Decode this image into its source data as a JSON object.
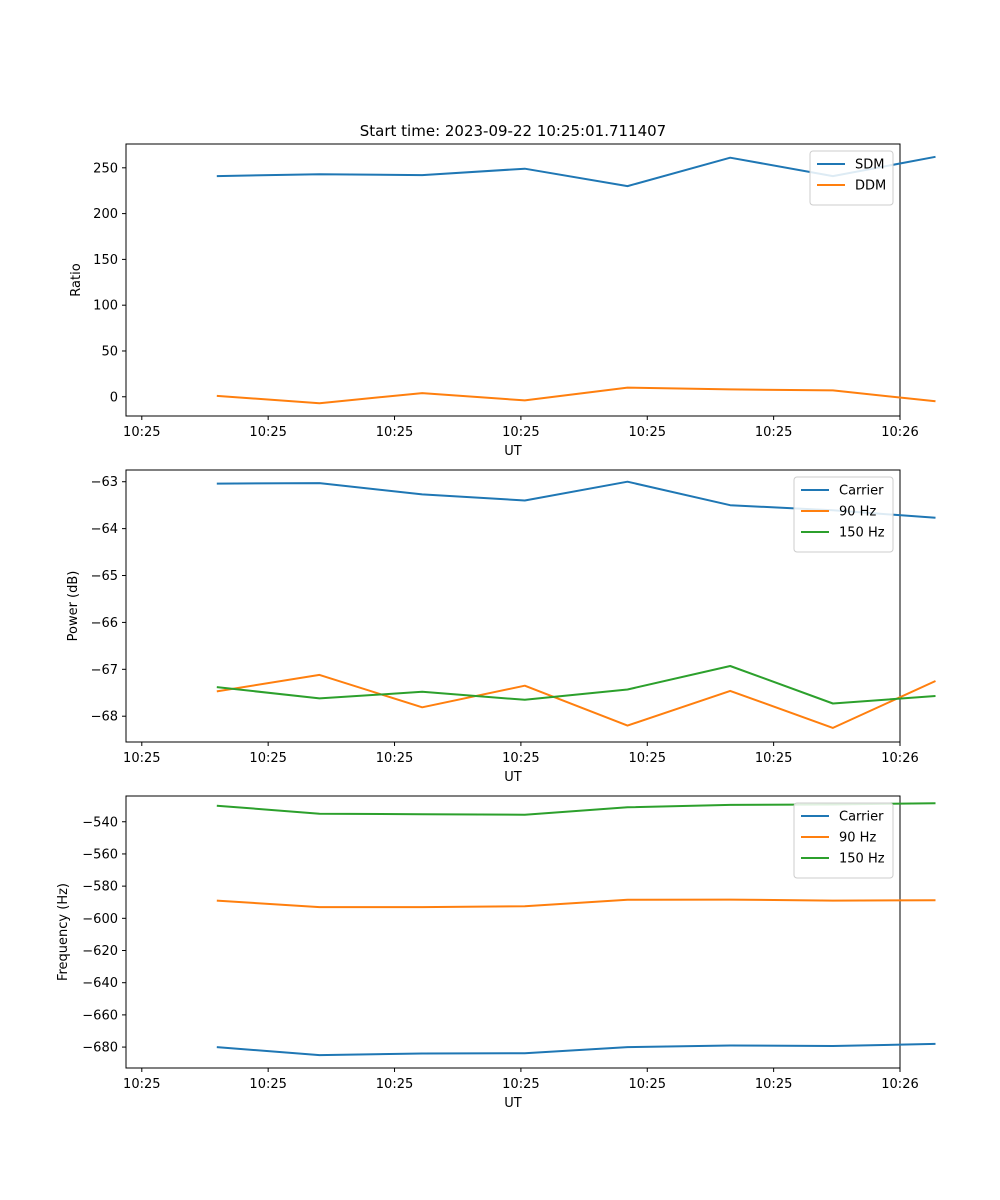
{
  "figure": {
    "title": "Start time: 2023-09-22 10:25:01.711407"
  },
  "colors": {
    "blue": "#1f77b4",
    "orange": "#ff7f0e",
    "green": "#2ca02c"
  },
  "chart_data": [
    {
      "type": "line",
      "title": "Start time: 2023-09-22 10:25:01.711407",
      "xlabel": "UT",
      "ylabel": "Ratio",
      "x_index": [
        1,
        2,
        3,
        4,
        5,
        6,
        7,
        8
      ],
      "x_tick_positions": [
        0,
        1.6,
        3.2,
        4.8,
        6.4,
        8.0,
        9.6
      ],
      "x_tick_labels": [
        "10:25",
        "10:25",
        "10:25",
        "10:25",
        "10:25",
        "10:25",
        "10:26"
      ],
      "xlim": [
        -0.2,
        9.6
      ],
      "ylim": [
        -21,
        276
      ],
      "y_ticks": [
        0,
        50,
        100,
        150,
        200,
        250
      ],
      "legend": "top-right",
      "series": [
        {
          "name": "SDM",
          "color": "#1f77b4",
          "values": [
            241,
            243,
            242,
            249,
            230,
            261,
            241,
            262
          ]
        },
        {
          "name": "DDM",
          "color": "#ff7f0e",
          "values": [
            1,
            -7,
            4,
            -4,
            10,
            8,
            7,
            -5
          ]
        }
      ]
    },
    {
      "type": "line",
      "title": "",
      "xlabel": "UT",
      "ylabel": "Power (dB)",
      "x_index": [
        1,
        2,
        3,
        4,
        5,
        6,
        7,
        8
      ],
      "x_tick_positions": [
        0,
        1.6,
        3.2,
        4.8,
        6.4,
        8.0,
        9.6
      ],
      "x_tick_labels": [
        "10:25",
        "10:25",
        "10:25",
        "10:25",
        "10:25",
        "10:25",
        "10:26"
      ],
      "xlim": [
        -0.2,
        9.6
      ],
      "ylim": [
        -68.55,
        -62.75
      ],
      "y_ticks": [
        -63,
        -64,
        -65,
        -66,
        -67,
        -68
      ],
      "legend": "top-right",
      "series": [
        {
          "name": "Carrier",
          "color": "#1f77b4",
          "values": [
            -63.04,
            -63.03,
            -63.27,
            -63.4,
            -63.0,
            -63.5,
            -63.61,
            -63.77
          ]
        },
        {
          "name": "90 Hz",
          "color": "#ff7f0e",
          "values": [
            -67.47,
            -67.12,
            -67.81,
            -67.35,
            -68.2,
            -67.46,
            -68.25,
            -67.25
          ]
        },
        {
          "name": "150 Hz",
          "color": "#2ca02c",
          "values": [
            -67.38,
            -67.62,
            -67.48,
            -67.65,
            -67.43,
            -66.93,
            -67.73,
            -67.57
          ]
        }
      ]
    },
    {
      "type": "line",
      "title": "",
      "xlabel": "UT",
      "ylabel": "Frequency (Hz)",
      "x_index": [
        1,
        2,
        3,
        4,
        5,
        6,
        7,
        8
      ],
      "x_tick_positions": [
        0,
        1.6,
        3.2,
        4.8,
        6.4,
        8.0,
        9.6
      ],
      "x_tick_labels": [
        "10:25",
        "10:25",
        "10:25",
        "10:25",
        "10:25",
        "10:25",
        "10:26"
      ],
      "xlim": [
        -0.2,
        9.6
      ],
      "ylim": [
        -693,
        -524
      ],
      "y_ticks": [
        -540,
        -560,
        -580,
        -600,
        -620,
        -640,
        -660,
        -680
      ],
      "legend": "top-right",
      "series": [
        {
          "name": "Carrier",
          "color": "#1f77b4",
          "values": [
            -680,
            -685,
            -684,
            -683.8,
            -680,
            -679,
            -679.3,
            -678
          ]
        },
        {
          "name": "90 Hz",
          "color": "#ff7f0e",
          "values": [
            -589,
            -593,
            -593,
            -592.5,
            -588.5,
            -588.4,
            -589,
            -588.8
          ]
        },
        {
          "name": "150 Hz",
          "color": "#2ca02c",
          "values": [
            -530,
            -535,
            -535.3,
            -535.6,
            -531,
            -529.5,
            -529.3,
            -528.5
          ]
        }
      ]
    }
  ]
}
